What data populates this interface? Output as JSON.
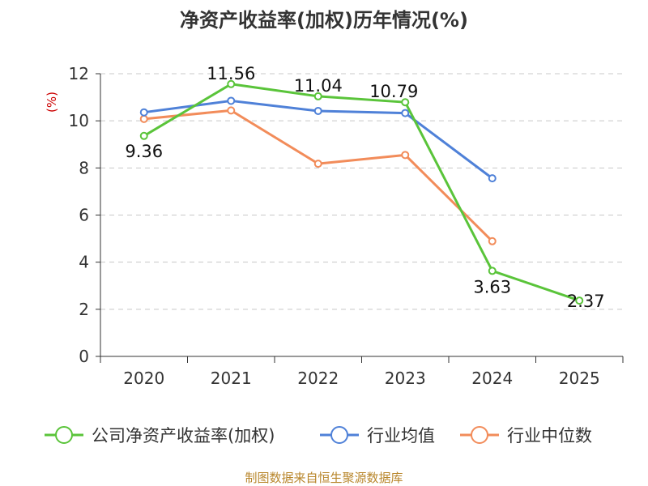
{
  "chart_data": {
    "type": "line",
    "title": "净资产收益率(加权)历年情况(%)",
    "ylabel": "(%)",
    "xlabel": "",
    "categories": [
      "2020",
      "2021",
      "2022",
      "2023",
      "2024",
      "2025"
    ],
    "ylim": [
      0,
      12
    ],
    "yticks": [
      0,
      2,
      4,
      6,
      8,
      10,
      12
    ],
    "grid": true,
    "legend_position": "bottom",
    "series": [
      {
        "name": "公司净资产收益率(加权)",
        "color": "#5ac43a",
        "values": [
          9.36,
          11.56,
          11.04,
          10.79,
          3.63,
          2.37
        ],
        "data_labels": [
          "9.36",
          "11.56",
          "11.04",
          "10.79",
          "3.63",
          "2.37"
        ]
      },
      {
        "name": "行业均值",
        "color": "#4f81d8",
        "values": [
          10.36,
          10.85,
          10.42,
          10.33,
          7.56,
          null
        ]
      },
      {
        "name": "行业中位数",
        "color": "#f28c5a",
        "values": [
          10.08,
          10.44,
          8.18,
          8.55,
          4.89,
          null
        ]
      }
    ],
    "source": "制图数据来自恒生聚源数据库"
  }
}
